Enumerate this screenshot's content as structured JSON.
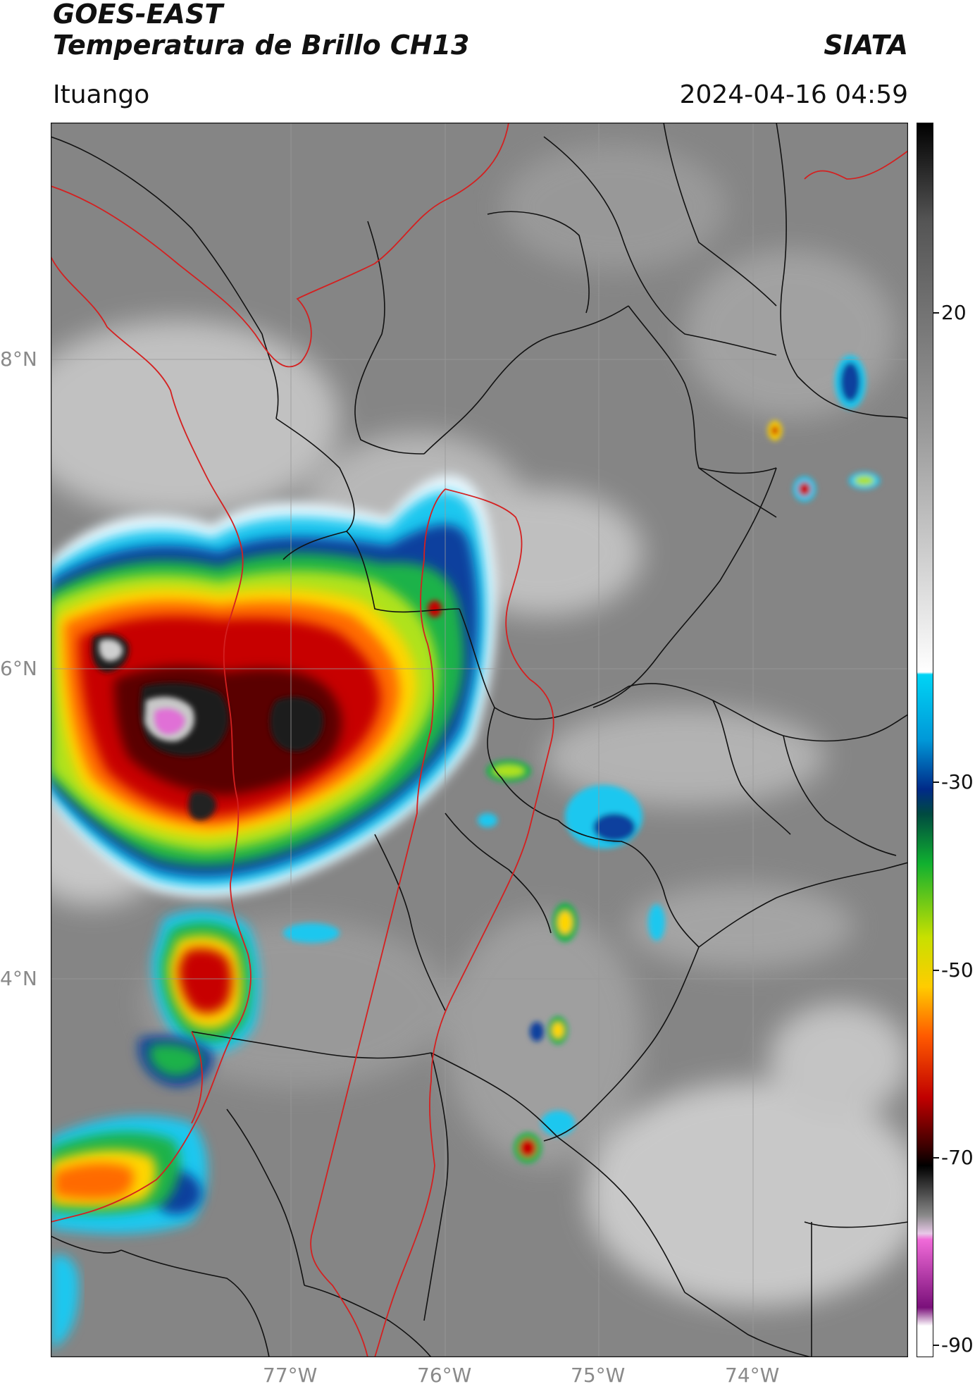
{
  "header": {
    "satellite": "GOES-EAST",
    "product": "Temperatura de Brillo CH13",
    "agency": "SIATA",
    "location": "Ituango",
    "datetime": "2024-04-16 04:59"
  },
  "map": {
    "lat_labels": [
      "8°N",
      "6°N",
      "4°N"
    ],
    "lon_labels": [
      "77°W",
      "76°W",
      "75°W",
      "74°W"
    ],
    "border_color": "#d42020",
    "admin_color": "#111111",
    "grid_color": "#9a9a9a"
  },
  "colorbar": {
    "tick_labels": [
      "20",
      "-30",
      "-50",
      "-70",
      "-90"
    ],
    "colors": [
      "#000000",
      "#555555",
      "#bbbbbb",
      "#ffffff",
      "#00bfe8",
      "#003a9c",
      "#00a840",
      "#b8e000",
      "#ffcc00",
      "#ff5500",
      "#c00000",
      "#3a0000",
      "#222222",
      "#bbbbbb",
      "#e86ad8",
      "#7a1a7a",
      "#ffffff"
    ]
  }
}
